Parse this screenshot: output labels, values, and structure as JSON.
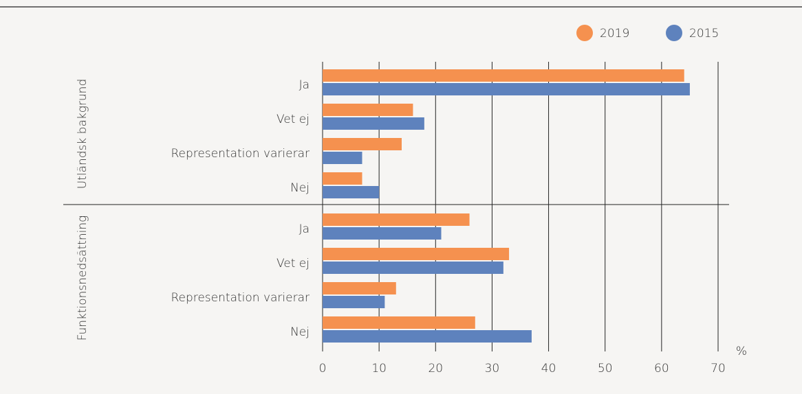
{
  "chart_data": {
    "type": "bar",
    "orientation": "horizontal",
    "x_label": "%",
    "series": [
      {
        "name": "2019",
        "color": "#f5914f"
      },
      {
        "name": "2015",
        "color": "#5e82bd"
      }
    ],
    "groups": [
      {
        "label": "Utländsk bakgrund",
        "categories": [
          "Ja",
          "Vet ej",
          "Representation varierar",
          "Nej"
        ],
        "values": [
          [
            64,
            16,
            14,
            7
          ],
          [
            65,
            18,
            7,
            10
          ]
        ]
      },
      {
        "label": "Funktionsnedsättning",
        "categories": [
          "Ja",
          "Vet ej",
          "Representation varierar",
          "Nej"
        ],
        "values": [
          [
            26,
            33,
            13,
            27
          ],
          [
            21,
            32,
            11,
            37
          ]
        ]
      }
    ],
    "xlim": [
      0,
      70
    ],
    "xticks": [
      0,
      10,
      20,
      30,
      40,
      50,
      60,
      70
    ],
    "grid": true,
    "legend": "top-right"
  }
}
